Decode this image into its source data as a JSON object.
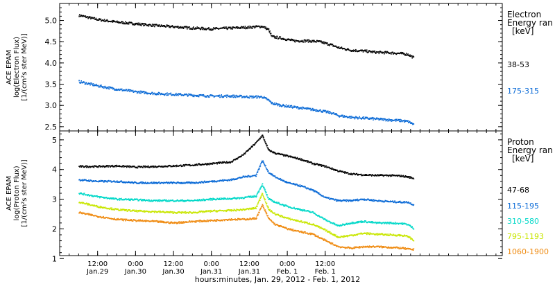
{
  "chart_data": [
    {
      "type": "scatter",
      "ylabel_lines": [
        "ACE EPAM",
        "log(Electron Flux)",
        "[1/(cm²s ster MeV)]"
      ],
      "ylim": [
        2.4,
        5.4
      ],
      "yticks": [
        "2.5",
        "3.0",
        "3.5",
        "4.0",
        "4.5",
        "5.0"
      ],
      "legend_title_lines": [
        "Electron",
        "Energy ran",
        "[keV]"
      ],
      "legend_placement": "right",
      "series": [
        {
          "name": "38-53",
          "color": "#000000",
          "points": [
            [
              6,
              5.12
            ],
            [
              12,
              5.02
            ],
            [
              18,
              4.96
            ],
            [
              24,
              4.92
            ],
            [
              30,
              4.88
            ],
            [
              36,
              4.85
            ],
            [
              42,
              4.82
            ],
            [
              48,
              4.8
            ],
            [
              54,
              4.82
            ],
            [
              60,
              4.84
            ],
            [
              64,
              4.86
            ],
            [
              66,
              4.78
            ],
            [
              67,
              4.62
            ],
            [
              70,
              4.58
            ],
            [
              74,
              4.52
            ],
            [
              78,
              4.52
            ],
            [
              82,
              4.5
            ],
            [
              86,
              4.42
            ],
            [
              88,
              4.36
            ],
            [
              92,
              4.3
            ],
            [
              96,
              4.28
            ],
            [
              100,
              4.25
            ],
            [
              104,
              4.24
            ],
            [
              108,
              4.22
            ],
            [
              110,
              4.2
            ],
            [
              112,
              4.12
            ]
          ]
        },
        {
          "name": "175-315",
          "color": "#0a6ad6",
          "points": [
            [
              6,
              3.56
            ],
            [
              12,
              3.46
            ],
            [
              18,
              3.38
            ],
            [
              24,
              3.32
            ],
            [
              30,
              3.28
            ],
            [
              36,
              3.26
            ],
            [
              42,
              3.24
            ],
            [
              48,
              3.22
            ],
            [
              54,
              3.22
            ],
            [
              60,
              3.2
            ],
            [
              64,
              3.2
            ],
            [
              66,
              3.12
            ],
            [
              67,
              3.05
            ],
            [
              70,
              3.0
            ],
            [
              74,
              2.96
            ],
            [
              78,
              2.92
            ],
            [
              82,
              2.88
            ],
            [
              86,
              2.82
            ],
            [
              88,
              2.76
            ],
            [
              92,
              2.72
            ],
            [
              96,
              2.7
            ],
            [
              100,
              2.68
            ],
            [
              104,
              2.66
            ],
            [
              108,
              2.64
            ],
            [
              110,
              2.62
            ],
            [
              112,
              2.55
            ]
          ]
        }
      ]
    },
    {
      "type": "scatter",
      "ylabel_lines": [
        "ACE EPAM",
        "log(Proton Flux)",
        "[1/(cm²s ster MeV)]"
      ],
      "ylim": [
        1.1,
        5.3
      ],
      "yticks": [
        "1",
        "2",
        "3",
        "4",
        "5"
      ],
      "legend_title_lines": [
        "Proton",
        "Energy ran",
        "[keV]"
      ],
      "legend_placement": "right",
      "series": [
        {
          "name": "47-68",
          "color": "#000000",
          "points": [
            [
              6,
              4.1
            ],
            [
              12,
              4.1
            ],
            [
              18,
              4.12
            ],
            [
              24,
              4.08
            ],
            [
              30,
              4.1
            ],
            [
              36,
              4.12
            ],
            [
              42,
              4.15
            ],
            [
              48,
              4.2
            ],
            [
              54,
              4.25
            ],
            [
              58,
              4.5
            ],
            [
              62,
              4.9
            ],
            [
              64,
              5.15
            ],
            [
              66,
              4.65
            ],
            [
              68,
              4.55
            ],
            [
              72,
              4.45
            ],
            [
              76,
              4.35
            ],
            [
              80,
              4.2
            ],
            [
              84,
              4.1
            ],
            [
              88,
              3.95
            ],
            [
              92,
              3.85
            ],
            [
              96,
              3.82
            ],
            [
              100,
              3.8
            ],
            [
              104,
              3.8
            ],
            [
              108,
              3.78
            ],
            [
              110,
              3.75
            ],
            [
              112,
              3.7
            ]
          ]
        },
        {
          "name": "115-195",
          "color": "#0a6ad6",
          "points": [
            [
              6,
              3.65
            ],
            [
              12,
              3.6
            ],
            [
              18,
              3.6
            ],
            [
              24,
              3.55
            ],
            [
              30,
              3.55
            ],
            [
              36,
              3.55
            ],
            [
              42,
              3.55
            ],
            [
              48,
              3.6
            ],
            [
              54,
              3.65
            ],
            [
              58,
              3.75
            ],
            [
              62,
              3.8
            ],
            [
              64,
              4.3
            ],
            [
              66,
              3.9
            ],
            [
              68,
              3.75
            ],
            [
              72,
              3.55
            ],
            [
              76,
              3.45
            ],
            [
              80,
              3.3
            ],
            [
              84,
              3.05
            ],
            [
              88,
              2.95
            ],
            [
              92,
              2.95
            ],
            [
              96,
              3.0
            ],
            [
              100,
              2.95
            ],
            [
              104,
              2.92
            ],
            [
              108,
              2.9
            ],
            [
              110,
              2.9
            ],
            [
              112,
              2.8
            ]
          ]
        },
        {
          "name": "310-580",
          "color": "#00d8c8",
          "points": [
            [
              6,
              3.2
            ],
            [
              12,
              3.08
            ],
            [
              18,
              3.0
            ],
            [
              24,
              2.98
            ],
            [
              30,
              2.95
            ],
            [
              36,
              2.95
            ],
            [
              42,
              2.95
            ],
            [
              48,
              3.0
            ],
            [
              54,
              3.02
            ],
            [
              58,
              3.05
            ],
            [
              62,
              3.1
            ],
            [
              64,
              3.5
            ],
            [
              66,
              3.0
            ],
            [
              68,
              2.9
            ],
            [
              72,
              2.75
            ],
            [
              76,
              2.65
            ],
            [
              80,
              2.55
            ],
            [
              84,
              2.3
            ],
            [
              88,
              2.1
            ],
            [
              92,
              2.2
            ],
            [
              96,
              2.25
            ],
            [
              100,
              2.2
            ],
            [
              104,
              2.2
            ],
            [
              108,
              2.18
            ],
            [
              110,
              2.15
            ],
            [
              112,
              2.0
            ]
          ]
        },
        {
          "name": "795-1193",
          "color": "#c8e600",
          "points": [
            [
              6,
              2.9
            ],
            [
              12,
              2.75
            ],
            [
              18,
              2.65
            ],
            [
              24,
              2.6
            ],
            [
              30,
              2.58
            ],
            [
              36,
              2.55
            ],
            [
              42,
              2.55
            ],
            [
              48,
              2.6
            ],
            [
              54,
              2.62
            ],
            [
              58,
              2.65
            ],
            [
              62,
              2.7
            ],
            [
              64,
              3.2
            ],
            [
              66,
              2.65
            ],
            [
              68,
              2.5
            ],
            [
              72,
              2.35
            ],
            [
              76,
              2.25
            ],
            [
              80,
              2.15
            ],
            [
              84,
              1.95
            ],
            [
              88,
              1.72
            ],
            [
              92,
              1.78
            ],
            [
              96,
              1.85
            ],
            [
              100,
              1.82
            ],
            [
              104,
              1.8
            ],
            [
              108,
              1.78
            ],
            [
              110,
              1.75
            ],
            [
              112,
              1.6
            ]
          ]
        },
        {
          "name": "1060-1900",
          "color": "#ef8a10",
          "points": [
            [
              6,
              2.55
            ],
            [
              12,
              2.42
            ],
            [
              18,
              2.32
            ],
            [
              24,
              2.28
            ],
            [
              30,
              2.25
            ],
            [
              36,
              2.2
            ],
            [
              42,
              2.25
            ],
            [
              48,
              2.28
            ],
            [
              54,
              2.32
            ],
            [
              58,
              2.32
            ],
            [
              62,
              2.35
            ],
            [
              64,
              2.8
            ],
            [
              66,
              2.35
            ],
            [
              68,
              2.15
            ],
            [
              72,
              2.0
            ],
            [
              76,
              1.9
            ],
            [
              80,
              1.82
            ],
            [
              84,
              1.6
            ],
            [
              88,
              1.4
            ],
            [
              92,
              1.35
            ],
            [
              96,
              1.4
            ],
            [
              100,
              1.4
            ],
            [
              104,
              1.38
            ],
            [
              108,
              1.35
            ],
            [
              110,
              1.32
            ],
            [
              112,
              1.3
            ]
          ]
        }
      ]
    }
  ],
  "x_axis": {
    "range_hours": [
      0,
      140
    ],
    "ticks": [
      {
        "x": 12,
        "time": "12:00",
        "date": "Jan.29"
      },
      {
        "x": 24,
        "time": "0:00",
        "date": "Jan.30"
      },
      {
        "x": 36,
        "time": "12:00",
        "date": "Jan.30"
      },
      {
        "x": 48,
        "time": "0:00",
        "date": "Jan.31"
      },
      {
        "x": 60,
        "time": "12:00",
        "date": "Jan.31"
      },
      {
        "x": 72,
        "time": "0:00",
        "date": "Feb. 1"
      },
      {
        "x": 84,
        "time": "12:00",
        "date": "Feb. 1"
      }
    ],
    "label": "hours:minutes, Jan. 29, 2012 - Feb. 1, 2012"
  }
}
